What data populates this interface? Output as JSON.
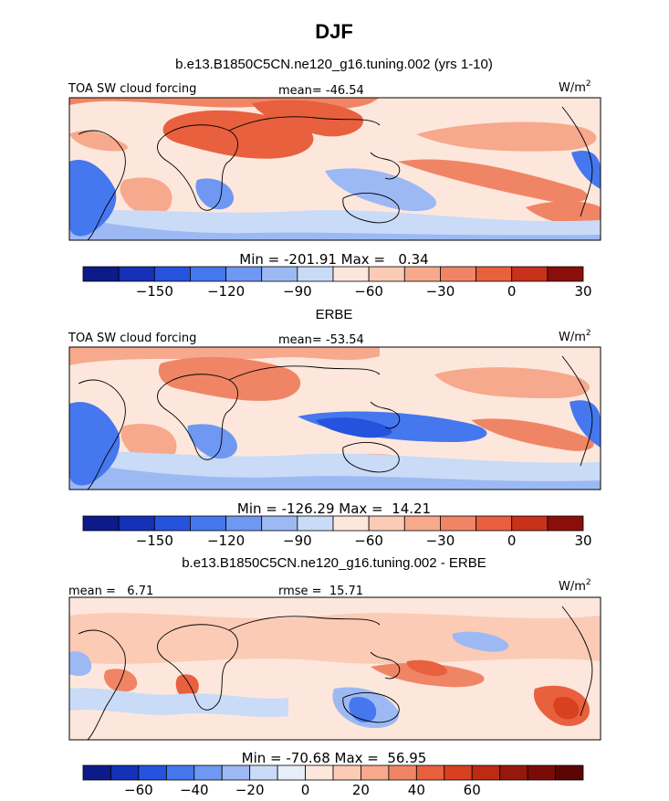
{
  "figure_title": "DJF",
  "colors": {
    "ramp_18": [
      "#0c1a8a",
      "#1431b8",
      "#2653dd",
      "#4577ee",
      "#6e98f2",
      "#9db9f4",
      "#c9dbf6",
      "#e6eefa",
      "#fde7dc",
      "#fbcbb6",
      "#f6a98d",
      "#f08566",
      "#e8603e",
      "#d9401f",
      "#bd2b14",
      "#96180d",
      "#7a0c08",
      "#5c0404"
    ],
    "ramp_14": [
      "#0c1a8a",
      "#1431b8",
      "#2653dd",
      "#4577ee",
      "#6e98f2",
      "#9db9f4",
      "#c9dbf6",
      "#fde7dc",
      "#fbcbb6",
      "#f6a98d",
      "#f08566",
      "#e8603e",
      "#c8321a",
      "#8a0f0a"
    ],
    "coast": "#000000",
    "frame": "#000000"
  },
  "chart_data": [
    {
      "type": "heatmap",
      "subtitle": "b.e13.B1850C5CN.ne120_g16.tuning.002 (yrs 1-10)",
      "left_label": "TOA SW cloud forcing",
      "center_label": "mean= -46.54",
      "units_text": "W/m",
      "units_exp": "2",
      "min_max": "Min = -201.91 Max =   0.34",
      "min": -201.91,
      "max": 0.34,
      "colorbar_levels": [
        -150,
        -120,
        -90,
        -60,
        -30,
        0,
        30
      ],
      "colorbar_labels": [
        "−150",
        "−120",
        "−90",
        "−60",
        "−30",
        "0",
        "30"
      ],
      "colorbar_bins": 14
    },
    {
      "type": "heatmap",
      "subtitle": "ERBE",
      "left_label": "TOA SW cloud forcing",
      "center_label": "mean= -53.54",
      "units_text": "W/m",
      "units_exp": "2",
      "min_max": "Min = -126.29 Max =  14.21",
      "min": -126.29,
      "max": 14.21,
      "colorbar_levels": [
        -150,
        -120,
        -90,
        -60,
        -30,
        0,
        30
      ],
      "colorbar_labels": [
        "−150",
        "−120",
        "−90",
        "−60",
        "−30",
        "0",
        "30"
      ],
      "colorbar_bins": 14
    },
    {
      "type": "heatmap",
      "subtitle": "b.e13.B1850C5CN.ne120_g16.tuning.002 - ERBE",
      "left_label": "mean =   6.71",
      "center_label": "rmse =  15.71",
      "units_text": "W/m",
      "units_exp": "2",
      "min_max": "Min = -70.68 Max =  56.95",
      "min": -70.68,
      "max": 56.95,
      "colorbar_levels": [
        -60,
        -40,
        -20,
        0,
        20,
        40,
        60
      ],
      "colorbar_labels": [
        "−60",
        "−40",
        "−20",
        "0",
        "20",
        "40",
        "60"
      ],
      "colorbar_bins": 18
    }
  ]
}
